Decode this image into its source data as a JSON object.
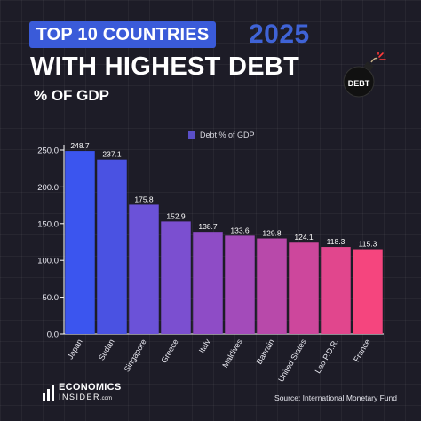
{
  "header": {
    "badge_title": "TOP 10 COUNTRIES",
    "year": "2025",
    "headline": "WITH HIGHEST DEBT",
    "subtitle": "% OF GDP",
    "bomb_label": "DEBT"
  },
  "legend": {
    "label": "Debt % of GDP"
  },
  "footer": {
    "brand_name": "ECONOMICS",
    "brand_sub": "INSIDER",
    "brand_domain": ".com",
    "source": "Source: International Monetary Fund"
  },
  "colors": {
    "background": "#1d1c27",
    "title_badge": "#3a5bd9",
    "year": "#3f63d6",
    "bars": [
      "#3b55ef",
      "#4a52e2",
      "#6b52d8",
      "#7b4fd0",
      "#8e4cc6",
      "#a34bba",
      "#b849aa",
      "#cd479c",
      "#e1468d",
      "#f5457e"
    ]
  },
  "chart_data": {
    "type": "bar",
    "categories": [
      "Japan",
      "Sudan",
      "Singapore",
      "Greece",
      "Italy",
      "Maldives",
      "Bahrain",
      "United States",
      "Lao P.D.R.",
      "France"
    ],
    "series": [
      {
        "name": "Debt % of GDP",
        "values": [
          248.7,
          237.1,
          175.8,
          152.9,
          138.7,
          133.6,
          129.8,
          124.1,
          118.3,
          115.3
        ]
      }
    ],
    "data_labels": [
      "248.7",
      "237.1",
      "175.8",
      "152.9",
      "138.7",
      "133.6",
      "129.8",
      "124.1",
      "118.3",
      "115.3"
    ],
    "yticks": [
      0,
      50,
      100,
      150,
      200,
      250
    ],
    "ytick_labels": [
      "0.0",
      "50.0",
      "100.0",
      "150.0",
      "200.0",
      "250.0"
    ],
    "ylim": [
      0,
      260
    ],
    "legend_position": "top-center",
    "grid": false
  }
}
